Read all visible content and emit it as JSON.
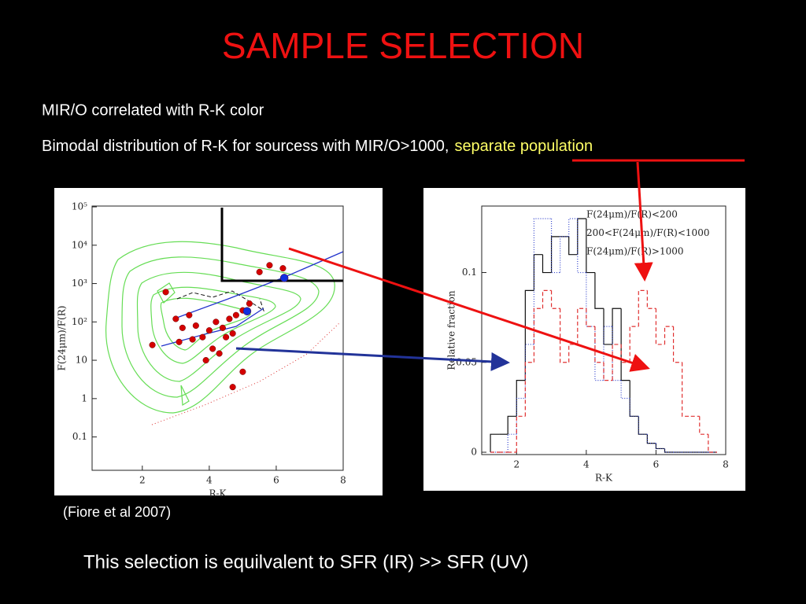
{
  "slide": {
    "title": "SAMPLE SELECTION",
    "bullets": [
      {
        "text": "MIR/O correlated with R-K color"
      },
      {
        "text": "Bimodal distribution of R-K for sourcess with MIR/O>1000,",
        "highlight": "separate population"
      }
    ],
    "citation": "(Fiore et al 2007)",
    "conclusion": "This selection is equilvalent to SFR (IR) >> SFR (UV)"
  },
  "chart_data": [
    {
      "type": "scatter",
      "xlabel": "R-K",
      "ylabel": "F(24μm)/F(R)",
      "log_y": true,
      "xlim": [
        0.5,
        8
      ],
      "ylim": [
        0.0135,
        105000
      ],
      "xticks": [
        2,
        4,
        6,
        8
      ],
      "yticks": [
        {
          "value": 100000,
          "label": "10⁵"
        },
        {
          "value": 10000,
          "label": "10⁴"
        },
        {
          "value": 1000,
          "label": "10³"
        },
        {
          "value": 100,
          "label": "10²"
        },
        10,
        1,
        0.1
      ],
      "series": [
        {
          "color": "#d40000",
          "x": [
            2.3,
            3.1,
            3.5,
            3.8,
            3.2,
            3.6,
            4.0,
            4.2,
            4.4,
            4.6,
            4.8,
            5.0,
            4.1,
            4.3,
            3.9,
            4.5,
            4.7,
            5.2,
            5.5,
            5.8,
            6.2,
            2.7,
            3.4,
            5.0,
            4.7,
            3.0
          ],
          "values": [
            25,
            30,
            35,
            40,
            70,
            80,
            60,
            100,
            70,
            120,
            150,
            200,
            20,
            15,
            10,
            40,
            50,
            300,
            2000,
            3000,
            2500,
            600,
            150,
            5,
            2,
            120
          ]
        },
        {
          "color": "#1030e0",
          "x": [
            6.24,
            5.13
          ],
          "values": [
            1400,
            190
          ]
        }
      ]
    },
    {
      "type": "histogram",
      "xlabel": "R-K",
      "ylabel": "Relative fraction",
      "xlim": [
        1,
        8
      ],
      "ylim": [
        -0.0013,
        0.137
      ],
      "xticks": [
        2,
        4,
        6,
        8
      ],
      "yticks": [
        0,
        0.05,
        0.1
      ],
      "bins": [
        1.25,
        1.5,
        1.75,
        2,
        2.25,
        2.5,
        2.75,
        3,
        3.25,
        3.5,
        3.75,
        4,
        4.25,
        4.5,
        4.75,
        5,
        5.25,
        5.5,
        5.75,
        6,
        6.25,
        6.5,
        6.75,
        7,
        7.25,
        7.5,
        7.75
      ],
      "series": [
        {
          "name": "F(24μm)/F(R)<200",
          "color": "#111111",
          "line_style": "solid",
          "values": [
            0.01,
            0.01,
            0.02,
            0.04,
            0.09,
            0.11,
            0.1,
            0.12,
            0.12,
            0.11,
            0.13,
            0.1,
            0.08,
            0.06,
            0.08,
            0.04,
            0.02,
            0.01,
            0.005,
            0.002,
            0,
            0,
            0,
            0,
            0,
            0
          ]
        },
        {
          "name": "200<F(24μm)/F(R)<1000",
          "color": "#3344cc",
          "line_style": "dotted",
          "values": [
            0,
            0,
            0.01,
            0.03,
            0.06,
            0.13,
            0.13,
            0.1,
            0.12,
            0.13,
            0.1,
            0.07,
            0.04,
            0.07,
            0.04,
            0.03,
            0.02,
            0.01,
            0.005,
            0.002,
            0,
            0,
            0,
            0,
            0,
            0
          ]
        },
        {
          "name": "F(24μm)/F(R)>1000",
          "color": "#e03030",
          "line_style": "dashed",
          "values": [
            0,
            0,
            0,
            0.02,
            0.05,
            0.08,
            0.09,
            0.08,
            0.05,
            0.06,
            0.08,
            0.07,
            0.05,
            0.04,
            0.06,
            0.05,
            0.07,
            0.09,
            0.08,
            0.06,
            0.07,
            0.05,
            0.02,
            0.02,
            0.01,
            0
          ]
        }
      ]
    }
  ]
}
